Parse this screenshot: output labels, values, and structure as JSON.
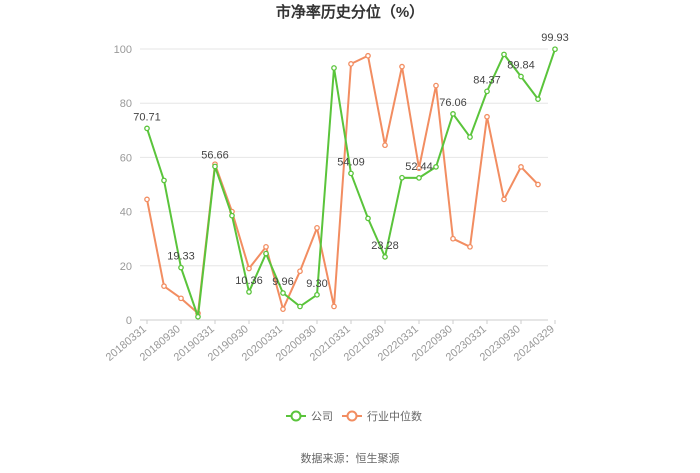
{
  "chart_data": {
    "type": "line",
    "title": "市净率历史分位（%）",
    "source": "数据来源：恒生聚源",
    "x": [
      "20180331",
      "20180630",
      "20180930",
      "20181231",
      "20190331",
      "20190630",
      "20190930",
      "20191231",
      "20200331",
      "20200630",
      "20200930",
      "20201231",
      "20210331",
      "20210630",
      "20210930",
      "20211231",
      "20220331",
      "20220630",
      "20220930",
      "20221231",
      "20230331",
      "20230630",
      "20230930",
      "20231231",
      "20240329"
    ],
    "x_tick_labels": [
      "20180331",
      "20180930",
      "20190331",
      "20190930",
      "20200331",
      "20200930",
      "20210331",
      "20210930",
      "20220331",
      "20220930",
      "20230331",
      "20230930",
      "20240329"
    ],
    "x_tick_index": [
      0,
      2,
      4,
      6,
      8,
      10,
      12,
      14,
      16,
      18,
      20,
      22,
      24
    ],
    "ylim": [
      0,
      100
    ],
    "yticks": [
      0,
      20,
      40,
      60,
      80,
      100
    ],
    "grid": true,
    "legend_position": "bottom",
    "series": [
      {
        "name": "公司",
        "color": "#5ac43b",
        "values": [
          70.71,
          51.5,
          19.33,
          1.2,
          56.66,
          38.5,
          10.36,
          24.5,
          9.96,
          5.0,
          9.3,
          93.0,
          54.09,
          37.5,
          23.28,
          52.5,
          52.44,
          56.5,
          76.06,
          67.5,
          84.37,
          98.0,
          89.84,
          81.5,
          99.93
        ],
        "labels": {
          "0": "70.71",
          "2": "19.33",
          "4": "56.66",
          "6": "10.36",
          "8": "9.96",
          "10": "9.30",
          "12": "54.09",
          "14": "23.28",
          "16": "52.44",
          "18": "76.06",
          "20": "84.37",
          "22": "89.84",
          "24": "99.93"
        }
      },
      {
        "name": "行业中位数",
        "color": "#f28d61",
        "values": [
          44.5,
          12.5,
          8.0,
          2.5,
          57.5,
          40.0,
          19.0,
          27.0,
          4.0,
          18.0,
          34.0,
          5.0,
          94.5,
          97.5,
          64.5,
          93.5,
          56.0,
          86.5,
          30.0,
          27.0,
          75.0,
          44.5,
          56.5,
          50.0,
          null
        ]
      }
    ]
  }
}
